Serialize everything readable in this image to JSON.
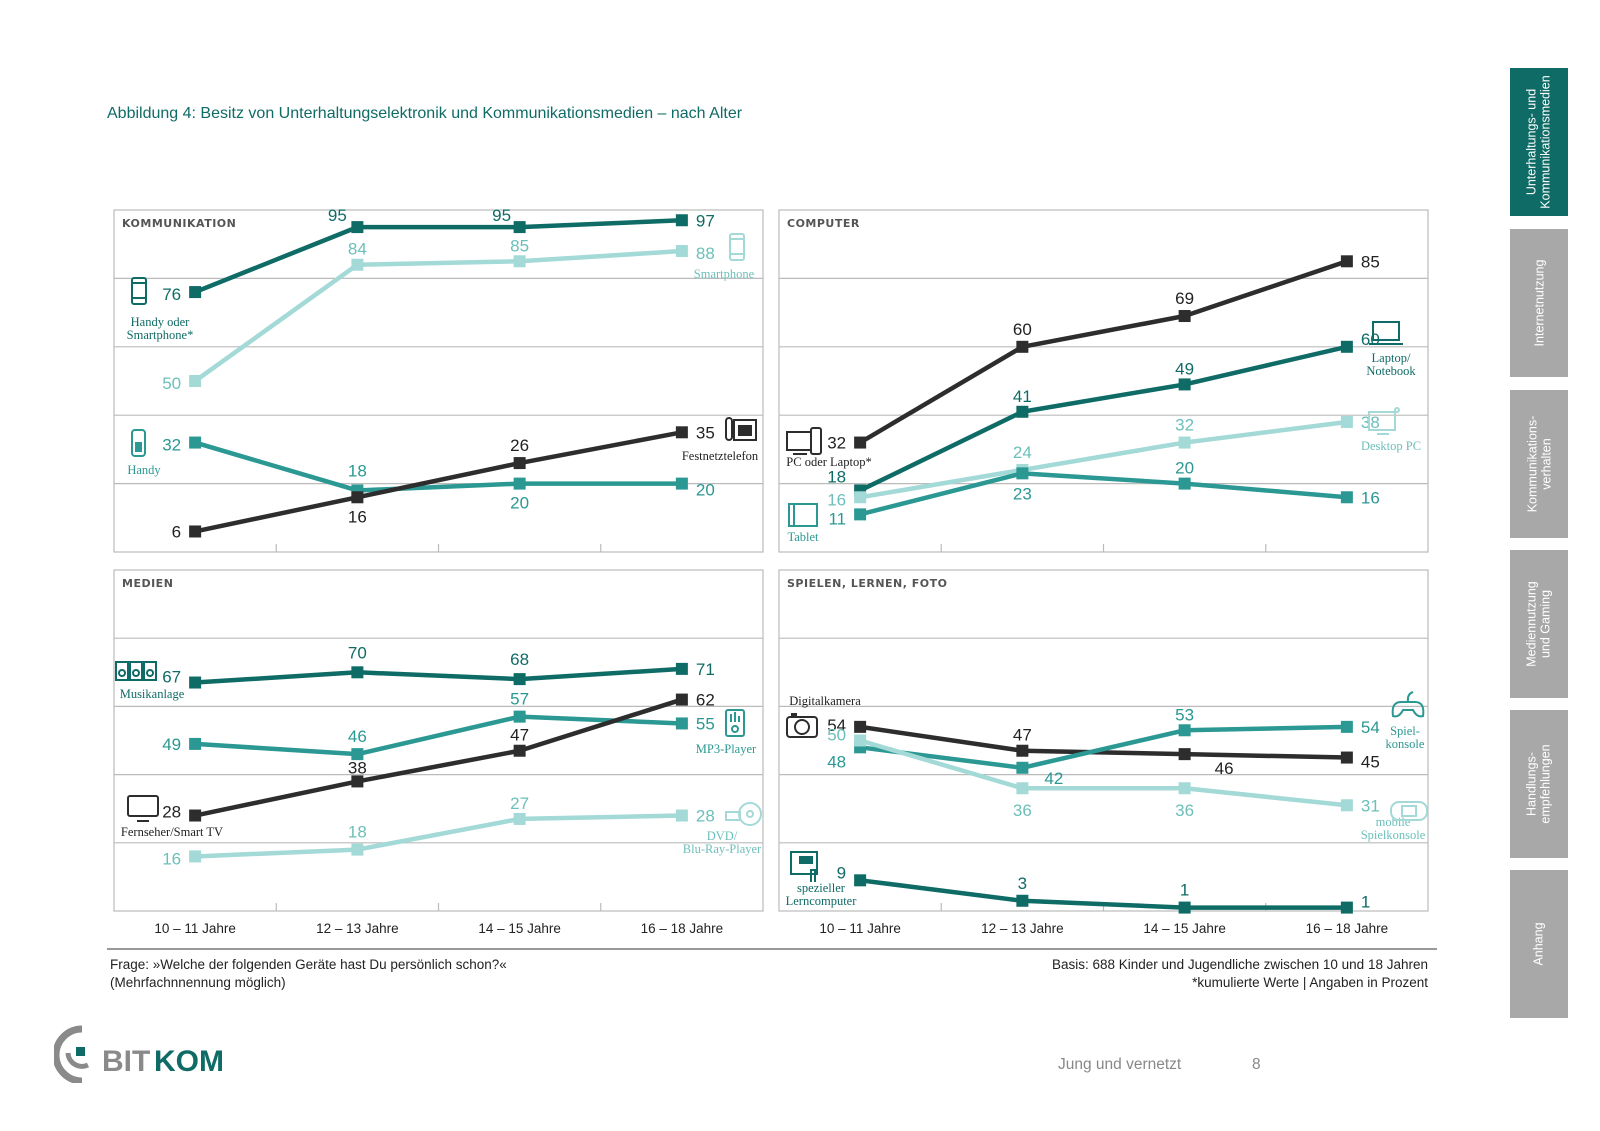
{
  "title": "Abbildung 4: Besitz von Unterhaltungselektronik und Kommunikationsmedien – nach Alter",
  "colors": {
    "dark_teal": "#0f6b66",
    "mid_teal": "#2b9893",
    "light_teal": "#a3d9d6",
    "light_teal_text": "#6cbfba",
    "black": "#2d2d2d",
    "sidebar_active": "#0f6b66",
    "sidebar_inactive": "#a8a8a8",
    "gridline": "#bbbbbb"
  },
  "chart_data": [
    {
      "type": "line",
      "title": "KOMMUNIKATION",
      "x": [
        "10 – 11 Jahre",
        "12 – 13 Jahre",
        "14 – 15 Jahre",
        "16 – 18 Jahre"
      ],
      "ylim": [
        0,
        100
      ],
      "grid": true,
      "series": [
        {
          "name": "Handy oder Smartphone*",
          "color": "dark_teal",
          "values": [
            76,
            95,
            95,
            97
          ],
          "icon": "mobile-phone-icon"
        },
        {
          "name": "Smartphone",
          "color": "light_teal",
          "values": [
            50,
            84,
            85,
            88
          ],
          "icon": "smartphone-icon"
        },
        {
          "name": "Handy",
          "color": "mid_teal",
          "values": [
            32,
            18,
            20,
            20
          ],
          "icon": "keypad-phone-icon"
        },
        {
          "name": "Festnetztelefon",
          "color": "black",
          "values": [
            6,
            16,
            26,
            35
          ],
          "icon": "landline-phone-icon"
        }
      ]
    },
    {
      "type": "line",
      "title": "COMPUTER",
      "x": [
        "10 – 11 Jahre",
        "12 – 13 Jahre",
        "14 – 15 Jahre",
        "16 – 18 Jahre"
      ],
      "ylim": [
        0,
        100
      ],
      "grid": true,
      "series": [
        {
          "name": "PC oder Laptop*",
          "color": "black",
          "values": [
            32,
            60,
            69,
            85
          ],
          "icon": "pc-laptop-icon"
        },
        {
          "name": "Laptop/ Notebook",
          "color": "dark_teal",
          "values": [
            18,
            41,
            49,
            60
          ],
          "icon": "laptop-icon"
        },
        {
          "name": "Desktop PC",
          "color": "light_teal",
          "values": [
            16,
            24,
            32,
            38
          ],
          "icon": "desktop-pc-icon"
        },
        {
          "name": "Tablet",
          "color": "mid_teal",
          "values": [
            11,
            23,
            20,
            16
          ],
          "icon": "tablet-icon"
        }
      ]
    },
    {
      "type": "line",
      "title": "MEDIEN",
      "x": [
        "10 – 11 Jahre",
        "12 – 13 Jahre",
        "14 – 15 Jahre",
        "16 – 18 Jahre"
      ],
      "ylim": [
        0,
        100
      ],
      "grid": true,
      "series": [
        {
          "name": "Musikanlage",
          "color": "dark_teal",
          "values": [
            67,
            70,
            68,
            71
          ],
          "icon": "stereo-icon"
        },
        {
          "name": "MP3-Player",
          "color": "mid_teal",
          "values": [
            49,
            46,
            57,
            55
          ],
          "icon": "mp3-player-icon"
        },
        {
          "name": "Fernseher/Smart TV",
          "color": "black",
          "values": [
            28,
            38,
            47,
            62
          ],
          "icon": "tv-icon"
        },
        {
          "name": "DVD/ Blu-Ray-Player",
          "color": "light_teal",
          "values": [
            16,
            18,
            27,
            28
          ],
          "icon": "dvd-player-icon"
        }
      ]
    },
    {
      "type": "line",
      "title": "SPIELEN, LERNEN, FOTO",
      "x": [
        "10 – 11 Jahre",
        "12 – 13 Jahre",
        "14 – 15 Jahre",
        "16 – 18 Jahre"
      ],
      "ylim": [
        0,
        100
      ],
      "grid": true,
      "series": [
        {
          "name": "Digitalkamera",
          "color": "black",
          "values": [
            54,
            47,
            46,
            45
          ],
          "icon": "camera-icon"
        },
        {
          "name": "Spiel- konsole",
          "color": "mid_teal",
          "values": [
            48,
            42,
            53,
            54
          ],
          "icon": "gamepad-icon"
        },
        {
          "name": "mobile Spielkonsole",
          "color": "light_teal",
          "values": [
            50,
            36,
            36,
            31
          ],
          "icon": "handheld-console-icon"
        },
        {
          "name": "spezieller Lerncomputer",
          "color": "dark_teal",
          "values": [
            9,
            3,
            1,
            1
          ],
          "icon": "learning-computer-icon"
        }
      ]
    }
  ],
  "notes": {
    "question_line1": "Frage: »Welche der folgenden Geräte hast Du persönlich schon?«",
    "question_line2": "(Mehrfachnnennung möglich)",
    "basis_line1": "Basis: 688 Kinder und Jugendliche zwischen 10 und 18 Jahren",
    "basis_line2": "*kumulierte Werte | Angaben in Prozent"
  },
  "footer": {
    "logo_text": "BITKOM",
    "publication": "Jung und vernetzt",
    "page_number": "8"
  },
  "sidebar": {
    "tabs": [
      {
        "label": "Unterhaltungs- und\nKommunikationsmedien",
        "active": true
      },
      {
        "label": "Internetnutzung",
        "active": false
      },
      {
        "label": "Kommunikations-\nverhalten",
        "active": false
      },
      {
        "label": "Mediennutzung\nund Gaming",
        "active": false
      },
      {
        "label": "Handlungs-\nempfehlungen",
        "active": false
      },
      {
        "label": "Anhang",
        "active": false
      }
    ]
  }
}
